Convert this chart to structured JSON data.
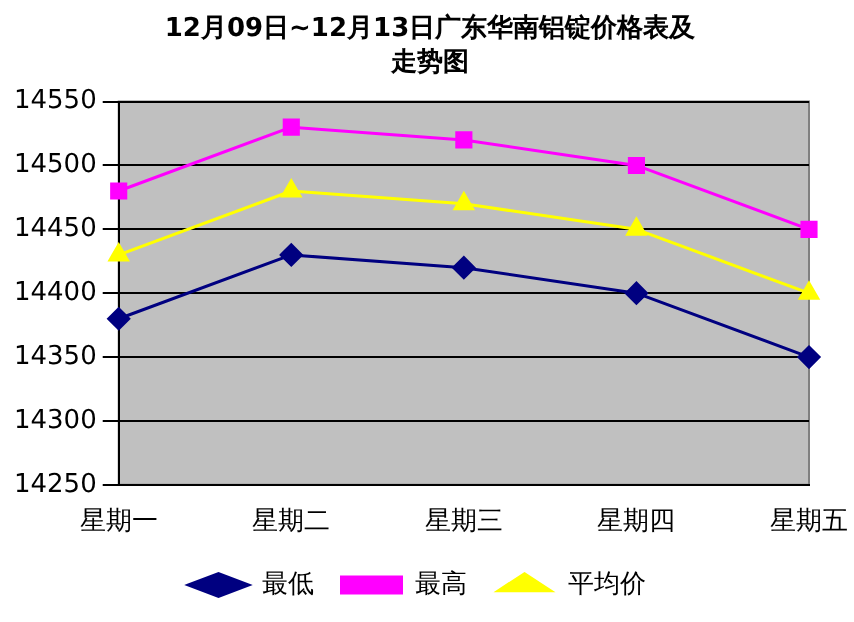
{
  "chart_data": {
    "type": "line",
    "title": "12月09日~12月13日广东华南铝锭价格表及走势图",
    "categories": [
      "星期一",
      "星期二",
      "星期三",
      "星期四",
      "星期五"
    ],
    "series": [
      {
        "name": "最低",
        "color": "#000080",
        "marker": "diamond",
        "values": [
          14380,
          14430,
          14420,
          14400,
          14350
        ]
      },
      {
        "name": "最高",
        "color": "#ff00ff",
        "marker": "square",
        "values": [
          14480,
          14530,
          14520,
          14500,
          14450
        ]
      },
      {
        "name": "平均价",
        "color": "#ffff00",
        "marker": "triangle",
        "values": [
          14430,
          14480,
          14470,
          14450,
          14400
        ]
      }
    ],
    "ylim": [
      14250,
      14550
    ],
    "yticks": [
      14250,
      14300,
      14350,
      14400,
      14450,
      14500,
      14550
    ],
    "grid": "y",
    "legend": "bottom",
    "line_style": "solid"
  }
}
